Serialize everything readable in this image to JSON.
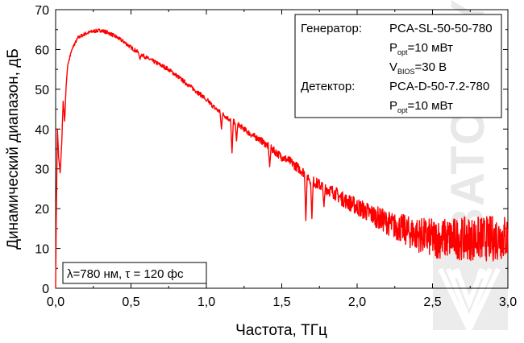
{
  "chart_data": {
    "type": "line",
    "xlabel": "Частота, ТГц",
    "ylabel": "Динамический диапазон, дБ",
    "xlim": [
      0,
      3.0
    ],
    "ylim": [
      0,
      70
    ],
    "x_ticks": [
      "0,0",
      "0,5",
      "1,0",
      "1,5",
      "2,0",
      "2,5",
      "3,0"
    ],
    "y_ticks": [
      "0",
      "10",
      "20",
      "30",
      "40",
      "50",
      "60",
      "70"
    ],
    "grid": false,
    "series": [
      {
        "color": "#ff0000",
        "points": [
          [
            0.0,
            0
          ],
          [
            0.005,
            20
          ],
          [
            0.012,
            40
          ],
          [
            0.02,
            33
          ],
          [
            0.03,
            29
          ],
          [
            0.04,
            36
          ],
          [
            0.05,
            47
          ],
          [
            0.06,
            42
          ],
          [
            0.07,
            51
          ],
          [
            0.08,
            56
          ],
          [
            0.1,
            59
          ],
          [
            0.12,
            61
          ],
          [
            0.15,
            63
          ],
          [
            0.2,
            64
          ],
          [
            0.25,
            64.6
          ],
          [
            0.3,
            64.8
          ],
          [
            0.35,
            64.2
          ],
          [
            0.4,
            63.2
          ],
          [
            0.45,
            62
          ],
          [
            0.5,
            60.5
          ],
          [
            0.55,
            59.2
          ],
          [
            0.6,
            58
          ],
          [
            0.65,
            57
          ],
          [
            0.7,
            56
          ],
          [
            0.75,
            55
          ],
          [
            0.8,
            53.5
          ],
          [
            0.85,
            52
          ],
          [
            0.9,
            50.5
          ],
          [
            0.95,
            49
          ],
          [
            1.0,
            47.5
          ],
          [
            1.05,
            45.5
          ],
          [
            1.1,
            44
          ],
          [
            1.15,
            42.5
          ],
          [
            1.2,
            41.5
          ],
          [
            1.25,
            40
          ],
          [
            1.3,
            38.5
          ],
          [
            1.35,
            37.5
          ],
          [
            1.4,
            36
          ],
          [
            1.45,
            34.5
          ],
          [
            1.5,
            33
          ],
          [
            1.55,
            32
          ],
          [
            1.6,
            30.5
          ],
          [
            1.65,
            29
          ],
          [
            1.7,
            27
          ],
          [
            1.75,
            26
          ],
          [
            1.8,
            25
          ],
          [
            1.85,
            24
          ],
          [
            1.9,
            22.5
          ],
          [
            1.95,
            21.5
          ],
          [
            2.0,
            20.5
          ],
          [
            2.05,
            19.5
          ],
          [
            2.1,
            18.5
          ],
          [
            2.15,
            17.5
          ],
          [
            2.2,
            16.5
          ],
          [
            2.25,
            15.5
          ],
          [
            2.3,
            15
          ],
          [
            2.35,
            14
          ],
          [
            2.4,
            13.5
          ],
          [
            2.45,
            13
          ],
          [
            2.5,
            12.5
          ],
          [
            2.55,
            12.5
          ],
          [
            2.6,
            12.5
          ],
          [
            2.65,
            12.5
          ],
          [
            2.7,
            12.5
          ],
          [
            2.75,
            12.5
          ],
          [
            2.8,
            12.5
          ],
          [
            2.85,
            12.5
          ],
          [
            2.9,
            12.5
          ],
          [
            2.95,
            13
          ],
          [
            3.0,
            12.5
          ]
        ],
        "dips": [
          [
            0.56,
            57.5
          ],
          [
            0.75,
            55
          ],
          [
            1.0,
            47
          ],
          [
            1.1,
            40
          ],
          [
            1.17,
            34
          ],
          [
            1.2,
            37
          ],
          [
            1.42,
            30.5
          ],
          [
            1.66,
            17
          ],
          [
            1.7,
            17.5
          ],
          [
            1.78,
            20.5
          ]
        ],
        "noise": [
          [
            0.0,
            0.4
          ],
          [
            1.2,
            0.6
          ],
          [
            1.8,
            1.5
          ],
          [
            2.2,
            3.0
          ],
          [
            2.5,
            5.0
          ],
          [
            3.0,
            6.0
          ]
        ]
      }
    ],
    "annotations": {
      "info_box": {
        "rows": [
          {
            "label": "Генератор:",
            "value_main": "PCA-SL-50-50-780",
            "value_sub": ""
          },
          {
            "label": "",
            "value_main": "P",
            "value_sub": "opt",
            "value_tail": "=10 мВт"
          },
          {
            "label": "",
            "value_main": "V",
            "value_sub": "BIOS",
            "value_tail": "=30 В"
          },
          {
            "label": "Детектор:",
            "value_main": "PCA-D-50-7.2-780",
            "value_sub": ""
          },
          {
            "label": "",
            "value_main": "P",
            "value_sub": "opt",
            "value_tail": "=10 мВт"
          }
        ]
      },
      "params_box": "λ=780 нм, τ = 120 фс"
    },
    "watermark": "BATOP TYDEX"
  }
}
